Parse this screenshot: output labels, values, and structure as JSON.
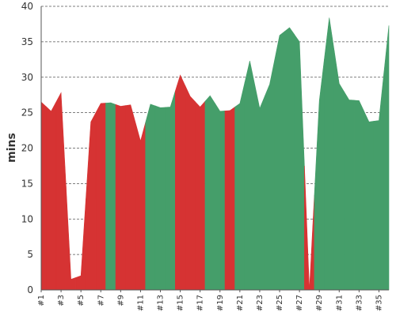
{
  "chart_data": {
    "type": "area",
    "ylabel": "mins",
    "ylim": [
      0,
      40
    ],
    "yticks": [
      0,
      5,
      10,
      15,
      20,
      25,
      30,
      35,
      40
    ],
    "x": [
      "#1",
      "#2",
      "#3",
      "#4",
      "#5",
      "#6",
      "#7",
      "#8",
      "#9",
      "#10",
      "#11",
      "#12",
      "#13",
      "#14",
      "#15",
      "#16",
      "#17",
      "#18",
      "#19",
      "#20",
      "#21",
      "#22",
      "#23",
      "#24",
      "#25",
      "#26",
      "#27",
      "#28",
      "#29",
      "#30",
      "#31",
      "#32",
      "#33",
      "#34",
      "#35",
      "#36"
    ],
    "xticks": [
      "#1",
      "#3",
      "#5",
      "#7",
      "#9",
      "#11",
      "#13",
      "#15",
      "#17",
      "#19",
      "#21",
      "#23",
      "#25",
      "#27",
      "#29",
      "#31",
      "#33",
      "#35"
    ],
    "values": [
      26.5,
      25.2,
      27.8,
      1.5,
      2.0,
      23.7,
      26.3,
      26.4,
      25.9,
      26.1,
      21.0,
      26.2,
      25.7,
      25.8,
      30.3,
      27.3,
      25.8,
      27.4,
      25.2,
      25.3,
      26.3,
      32.3,
      25.6,
      29.0,
      35.9,
      37.0,
      35.0,
      0.0,
      26.7,
      38.4,
      29.1,
      26.8,
      26.7,
      23.7,
      23.9,
      37.3
    ],
    "status": [
      "red",
      "red",
      "red",
      "red",
      "red",
      "red",
      "red",
      "green",
      "red",
      "red",
      "red",
      "green",
      "green",
      "green",
      "red",
      "red",
      "red",
      "green",
      "green",
      "red",
      "green",
      "green",
      "green",
      "green",
      "green",
      "green",
      "green",
      "red",
      "green",
      "green",
      "green",
      "green",
      "green",
      "green",
      "green",
      "green"
    ],
    "colors": {
      "red": "#d63333",
      "green": "#459e6a"
    },
    "grid": true
  }
}
